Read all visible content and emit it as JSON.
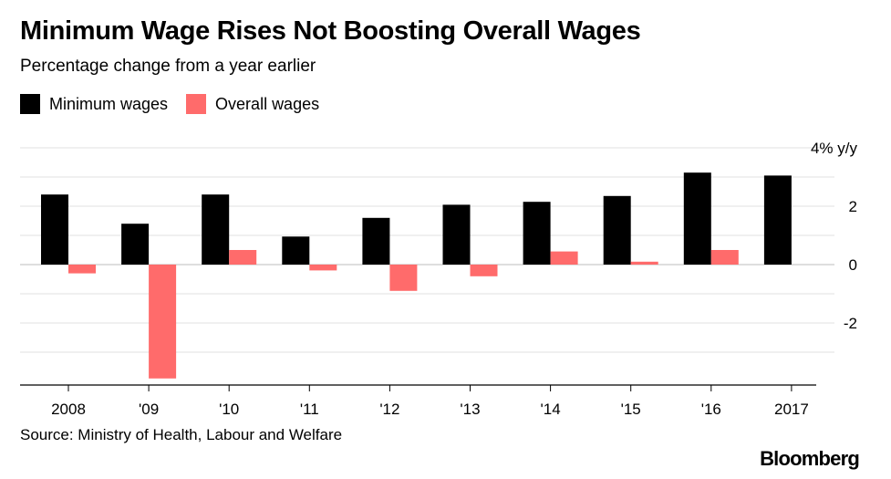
{
  "chart_data": {
    "type": "bar",
    "title": "Minimum Wage Rises Not Boosting Overall Wages",
    "subtitle": "Percentage change from a year earlier",
    "categories": [
      "2008",
      "'09",
      "'10",
      "'11",
      "'12",
      "'13",
      "'14",
      "'15",
      "'16",
      "2017"
    ],
    "series": [
      {
        "name": "Minimum wages",
        "color": "#000000",
        "values": [
          2.4,
          1.4,
          2.4,
          0.96,
          1.6,
          2.05,
          2.15,
          2.35,
          3.15,
          3.05
        ]
      },
      {
        "name": "Overall wages",
        "color": "#ff6b6b",
        "values": [
          -0.3,
          -3.9,
          0.5,
          -0.2,
          -0.9,
          -0.4,
          0.45,
          0.1,
          0.5,
          null
        ]
      }
    ],
    "ylim": [
      -4,
      4
    ],
    "yticks": [
      4,
      2,
      0,
      -2
    ],
    "ytick_labels": [
      "4% y/y",
      "2",
      "0",
      "-2"
    ],
    "grid": true,
    "legend_position": "top-left",
    "source": "Source: Ministry of Health, Labour and Welfare",
    "brand": "Bloomberg"
  }
}
